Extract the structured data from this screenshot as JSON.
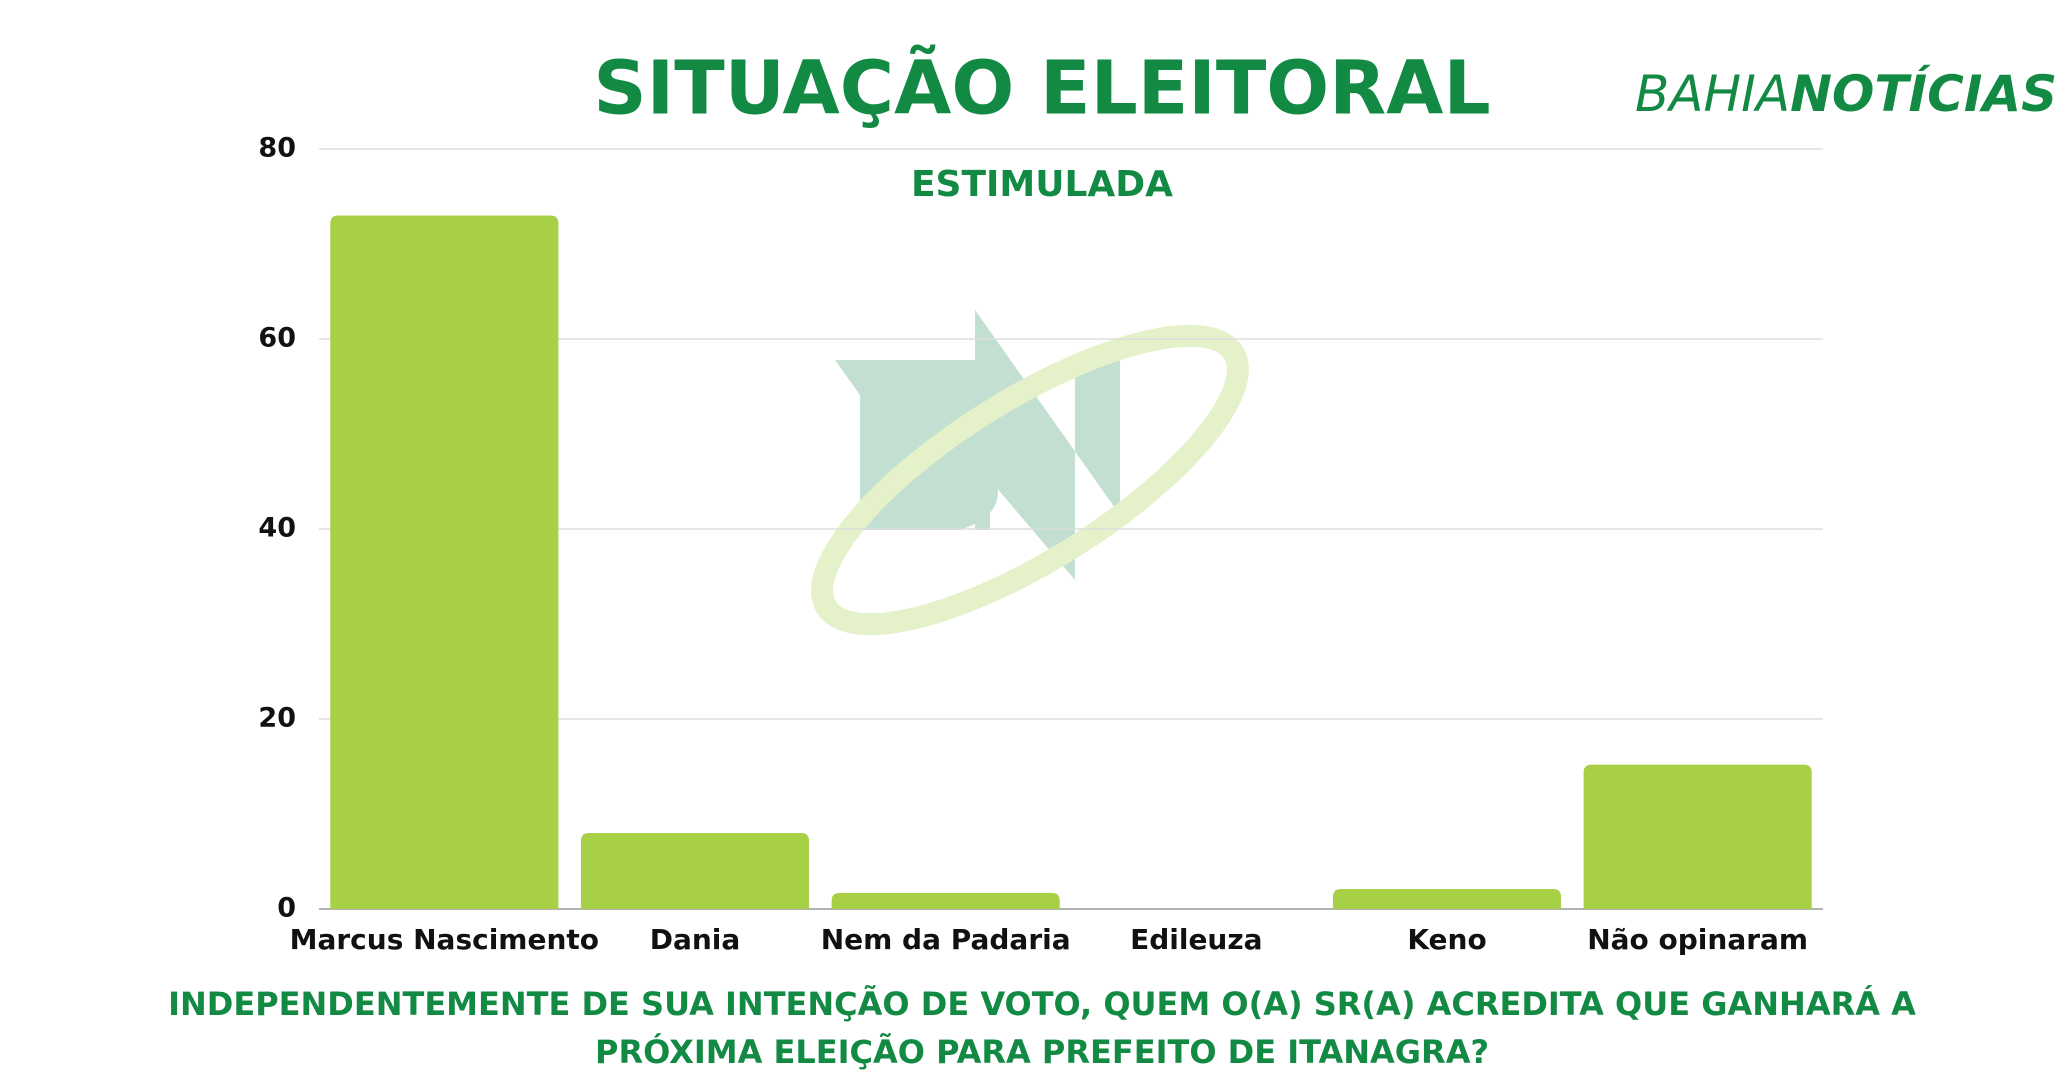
{
  "chart_data": {
    "type": "bar",
    "title": "SITUAÇÃO ELEITORAL",
    "subtitle": "ESTIMULADA",
    "logo": [
      "BAHIA",
      "NOTÍCIAS"
    ],
    "question": [
      "INDEPENDENTEMENTE DE SUA INTENÇÃO DE VOTO, QUEM O(A) SR(A) ACREDITA QUE GANHARÁ A",
      "PRÓXIMA ELEIÇÃO PARA PREFEITO DE ITANAGRA?"
    ],
    "categories": [
      "Marcus Nascimento",
      "Dania",
      "Nem da Padaria",
      "Edileuza",
      "Keno",
      "Não opinaram"
    ],
    "values": [
      73,
      8,
      1.7,
      0,
      2.1,
      15.2
    ],
    "color": "#a8d046",
    "ylim": [
      0,
      80
    ],
    "yticks": [
      0,
      20,
      40,
      60,
      80
    ],
    "grid": true
  }
}
